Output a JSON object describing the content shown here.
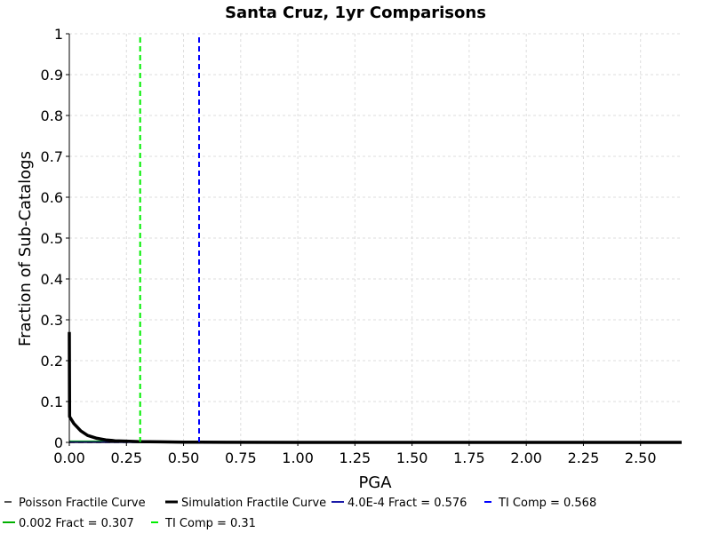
{
  "chart_data": {
    "type": "line",
    "title": "Santa Cruz, 1yr Comparisons",
    "xlabel": "PGA",
    "ylabel": "Fraction of Sub-Catalogs",
    "xlim": [
      0,
      2.68
    ],
    "ylim": [
      0,
      1
    ],
    "x_ticks": [
      "0.00",
      "0.25",
      "0.50",
      "0.75",
      "1.00",
      "1.25",
      "1.50",
      "1.75",
      "2.00",
      "2.25",
      "2.50"
    ],
    "y_ticks": [
      "0",
      "0.1",
      "0.2",
      "0.3",
      "0.4",
      "0.5",
      "0.6",
      "0.7",
      "0.8",
      "0.9",
      "1"
    ],
    "grid": true,
    "legend_position": "bottom",
    "series": [
      {
        "name": "Poisson Fractile Curve",
        "color": "#555555",
        "style": "dashed",
        "x": [
          0,
          2.68
        ],
        "y": [
          0,
          0
        ]
      },
      {
        "name": "Simulation Fractile Curve",
        "color": "#000000",
        "style": "solid",
        "x": [
          0,
          0.001,
          0.02,
          0.05,
          0.08,
          0.12,
          0.16,
          0.2,
          0.25,
          0.3,
          0.4,
          0.5,
          0.576,
          0.7,
          1.0,
          1.5,
          2.0,
          2.68
        ],
        "y": [
          0.27,
          0.063,
          0.046,
          0.028,
          0.017,
          0.01,
          0.006,
          0.004,
          0.003,
          0.002,
          0.0012,
          0.0007,
          0.0004,
          0.0002,
          6e-05,
          1e-05,
          0.0,
          0.0
        ]
      },
      {
        "name": "4.0E-4 Fract = 0.576",
        "color": "#1a1aa8",
        "style": "solid",
        "x": [
          0,
          0.576
        ],
        "y": [
          0.0004,
          0.0004
        ]
      },
      {
        "name": "TI Comp = 0.568",
        "color": "#0000ff",
        "style": "dashed",
        "x": [
          0.568,
          0.568
        ],
        "y": [
          0,
          1
        ]
      },
      {
        "name": "0.002 Fract = 0.307",
        "color": "#00b000",
        "style": "solid",
        "x": [
          0,
          0.307
        ],
        "y": [
          0.002,
          0.002
        ]
      },
      {
        "name": "TI Comp = 0.31",
        "color": "#00ee00",
        "style": "dashed",
        "x": [
          0.31,
          0.31
        ],
        "y": [
          0,
          1
        ]
      }
    ]
  }
}
